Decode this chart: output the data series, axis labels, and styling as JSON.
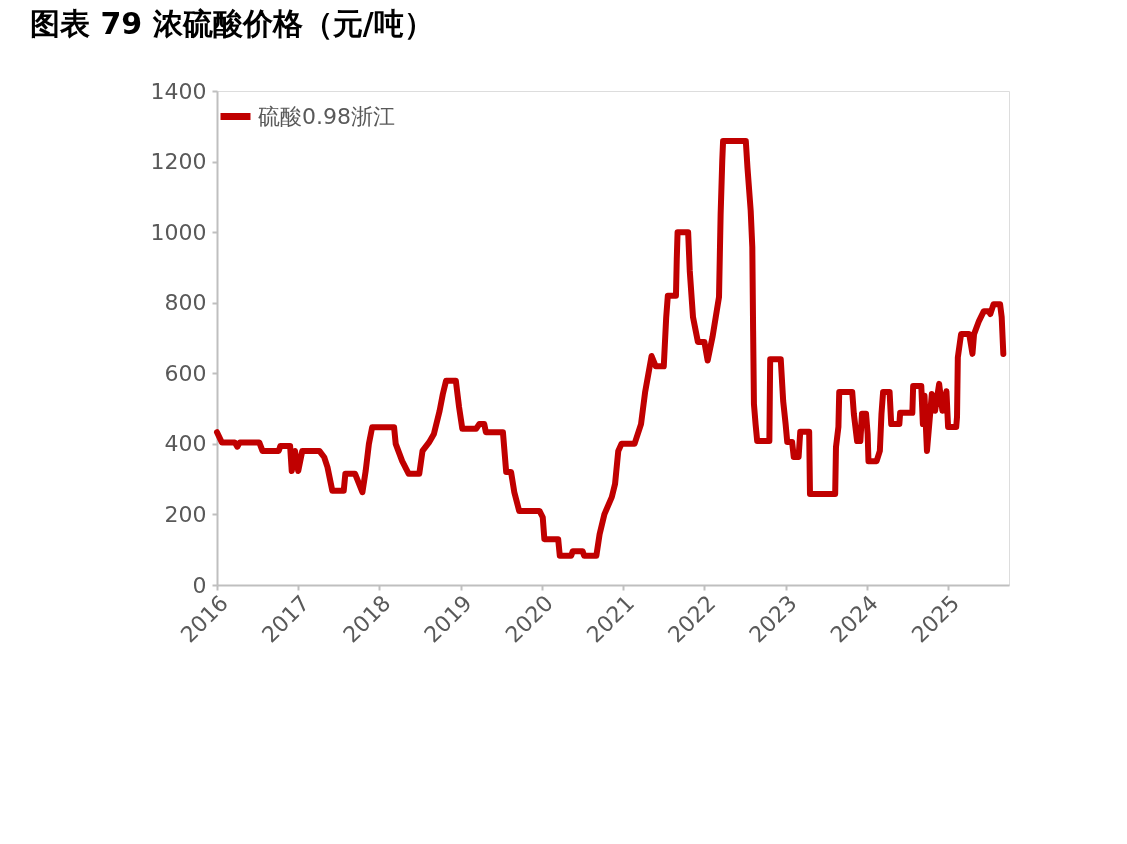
{
  "chart_data": {
    "type": "line",
    "title": "图表 79 浓硫酸价格（元/吨）",
    "xlim": [
      2016,
      2025.75
    ],
    "xticks": [
      2016,
      2017,
      2018,
      2019,
      2020,
      2021,
      2022,
      2023,
      2024,
      2025
    ],
    "ylim": [
      0,
      1400
    ],
    "yticks": [
      0,
      200,
      400,
      600,
      800,
      1000,
      1200,
      1400
    ],
    "legend": "top",
    "grid": false,
    "x": [
      2016.0,
      2016.06,
      2016.22,
      2016.25,
      2016.28,
      2016.52,
      2016.56,
      2016.76,
      2016.78,
      2016.9,
      2016.92,
      2016.96,
      2017.0,
      2017.05,
      2017.26,
      2017.32,
      2017.36,
      2017.42,
      2017.56,
      2017.58,
      2017.7,
      2017.79,
      2017.83,
      2017.87,
      2017.91,
      2018.18,
      2018.2,
      2018.28,
      2018.36,
      2018.49,
      2018.53,
      2018.61,
      2018.67,
      2018.74,
      2018.78,
      2018.82,
      2018.94,
      2018.98,
      2019.02,
      2019.19,
      2019.23,
      2019.29,
      2019.31,
      2019.52,
      2019.56,
      2019.62,
      2019.66,
      2019.72,
      2019.97,
      2020.01,
      2020.03,
      2020.2,
      2020.22,
      2020.36,
      2020.38,
      2020.5,
      2020.52,
      2020.67,
      2020.71,
      2020.77,
      2020.86,
      2020.9,
      2020.94,
      2020.98,
      2021.14,
      2021.22,
      2021.27,
      2021.35,
      2021.4,
      2021.5,
      2021.53,
      2021.55,
      2021.65,
      2021.66,
      2021.67,
      2021.8,
      2021.82,
      2021.86,
      2021.92,
      2022.0,
      2022.04,
      2022.1,
      2022.18,
      2022.2,
      2022.22,
      2022.23,
      2022.51,
      2022.53,
      2022.57,
      2022.59,
      2022.6,
      2022.61,
      2022.63,
      2022.65,
      2022.8,
      2022.81,
      2022.94,
      2022.97,
      2023.0,
      2023.02,
      2023.08,
      2023.1,
      2023.16,
      2023.18,
      2023.29,
      2023.3,
      2023.61,
      2023.62,
      2023.65,
      2023.66,
      2023.82,
      2023.84,
      2023.88,
      2023.92,
      2023.94,
      2023.99,
      2024.01,
      2024.02,
      2024.12,
      2024.16,
      2024.18,
      2024.2,
      2024.28,
      2024.3,
      2024.4,
      2024.41,
      2024.56,
      2024.57,
      2024.67,
      2024.69,
      2024.71,
      2024.74,
      2024.8,
      2024.84,
      2024.89,
      2024.93,
      2024.98,
      2025.0,
      2025.1,
      2025.11,
      2025.12,
      2025.16,
      2025.26,
      2025.3,
      2025.32,
      2025.38,
      2025.44,
      2025.5,
      2025.52,
      2025.56,
      2025.64,
      2025.66,
      2025.68
    ],
    "series": [
      {
        "name": "硫酸0.98浙江",
        "color": "#c00000",
        "values": [
          433,
          404,
          404,
          392,
          404,
          404,
          380,
          380,
          394,
          394,
          323,
          380,
          323,
          380,
          380,
          362,
          334,
          267,
          267,
          315,
          315,
          263,
          323,
          400,
          447,
          447,
          400,
          351,
          315,
          315,
          380,
          404,
          428,
          493,
          541,
          579,
          579,
          504,
          443,
          443,
          456,
          456,
          433,
          433,
          320,
          320,
          263,
          210,
          210,
          192,
          130,
          130,
          83,
          83,
          96,
          96,
          83,
          83,
          144,
          201,
          249,
          286,
          380,
          400,
          400,
          456,
          546,
          649,
          620,
          620,
          759,
          820,
          820,
          924,
          1000,
          1000,
          890,
          759,
          689,
          689,
          636,
          703,
          816,
          1051,
          1202,
          1258,
          1258,
          1184,
          1061,
          957,
          720,
          513,
          456,
          408,
          408,
          640,
          640,
          521,
          456,
          405,
          405,
          363,
          363,
          434,
          434,
          258,
          258,
          391,
          448,
          547,
          547,
          485,
          408,
          408,
          485,
          485,
          428,
          351,
          351,
          380,
          485,
          547,
          547,
          456,
          456,
          488,
          488,
          564,
          564,
          456,
          536,
          380,
          541,
          494,
          570,
          494,
          549,
          448,
          448,
          476,
          645,
          711,
          711,
          655,
          711,
          748,
          776,
          776,
          768,
          796,
          796,
          759,
          655
        ]
      }
    ]
  }
}
